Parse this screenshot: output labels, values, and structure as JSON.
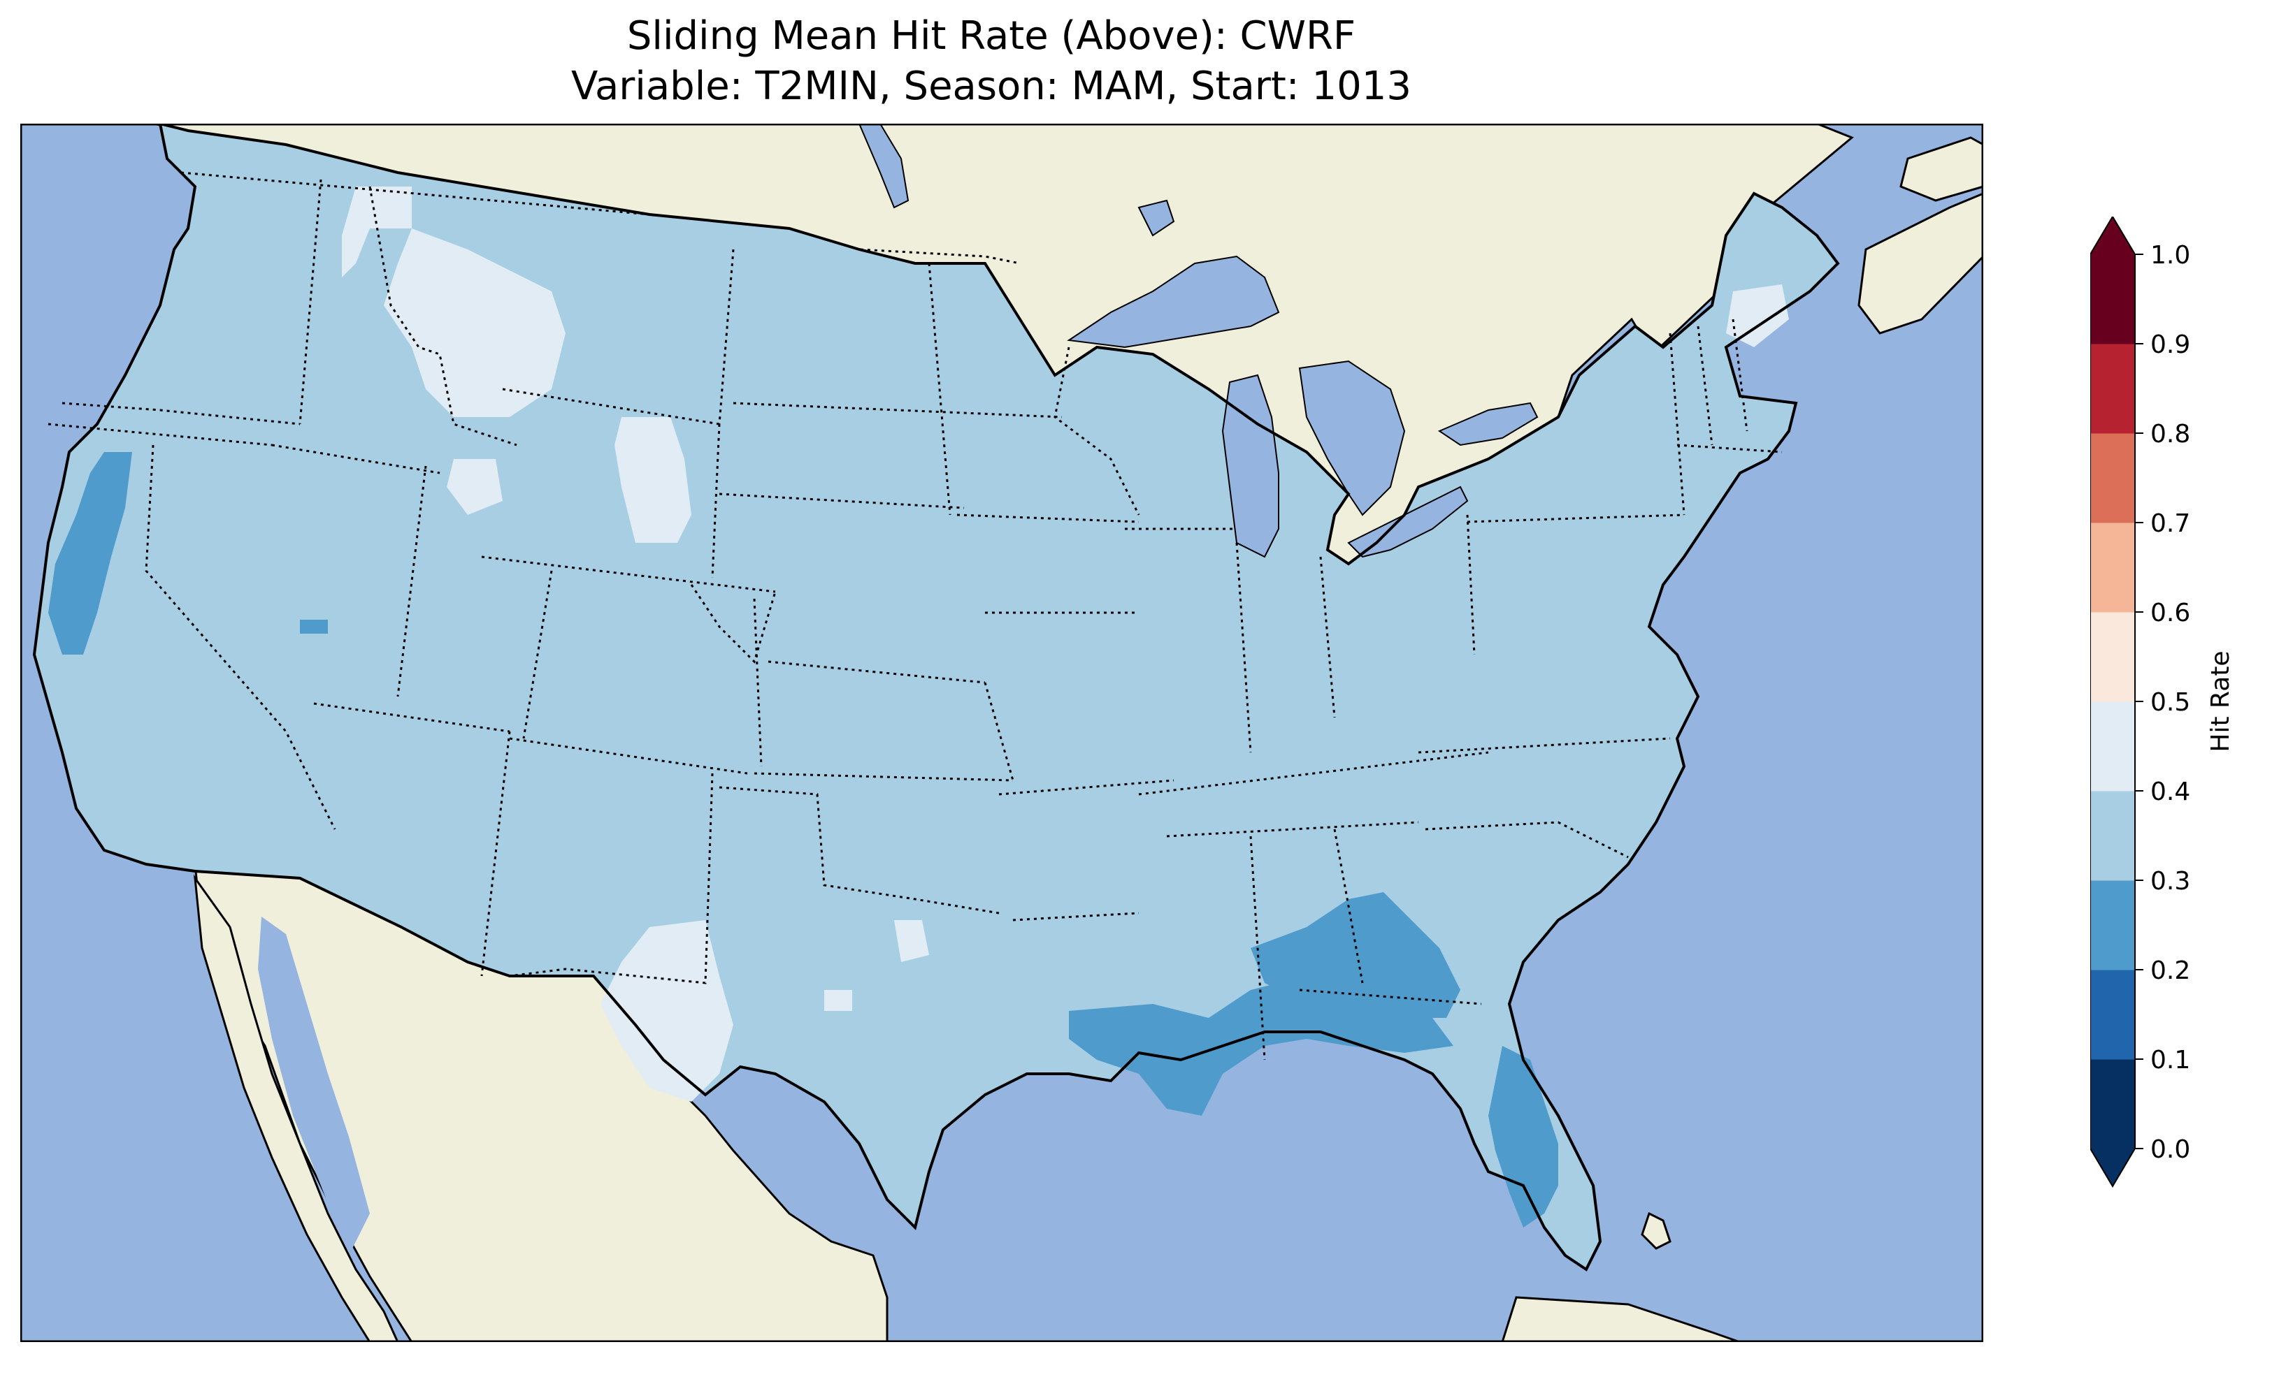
{
  "title_line1": "Sliding Mean Hit Rate (Above): CWRF",
  "title_line2": "Variable: T2MIN, Season: MAM, Start: 1013",
  "colors": {
    "ocean": "#95b4e0",
    "land": "#efefdc",
    "lake": "#95b4e0",
    "coast": "#000000",
    "border": "#000000"
  },
  "colorbar": {
    "label": "Hit Rate",
    "ticks": [
      "0.0",
      "0.1",
      "0.2",
      "0.3",
      "0.4",
      "0.5",
      "0.6",
      "0.7",
      "0.8",
      "0.9",
      "1.0"
    ],
    "bins": [
      {
        "range": [
          0.0,
          0.1
        ],
        "color": "#053061"
      },
      {
        "range": [
          0.1,
          0.2
        ],
        "color": "#2166ac"
      },
      {
        "range": [
          0.2,
          0.3
        ],
        "color": "#4f9bcb"
      },
      {
        "range": [
          0.3,
          0.4
        ],
        "color": "#a8cee4"
      },
      {
        "range": [
          0.4,
          0.5
        ],
        "color": "#e1ecf4"
      },
      {
        "range": [
          0.5,
          0.6
        ],
        "color": "#fae8dc"
      },
      {
        "range": [
          0.6,
          0.7
        ],
        "color": "#f4b697"
      },
      {
        "range": [
          0.7,
          0.8
        ],
        "color": "#dc6f58"
      },
      {
        "range": [
          0.8,
          0.9
        ],
        "color": "#b72230"
      },
      {
        "range": [
          0.9,
          1.0
        ],
        "color": "#67001f"
      }
    ],
    "extend": "both"
  },
  "map_data": {
    "type": "gridded-field",
    "region": "Contiguous United States",
    "dominant_value_bin": [
      0.3,
      0.4
    ],
    "regions_0_4_to_0_5": [
      "Idaho / western Montana",
      "central Wyoming",
      "west Texas",
      "northern Maine"
    ],
    "regions_0_2_to_0_3": [
      "central California coast",
      "Gulf Coast (Louisiana, Mississippi, Alabama)",
      "southern Georgia",
      "Florida peninsula"
    ]
  }
}
